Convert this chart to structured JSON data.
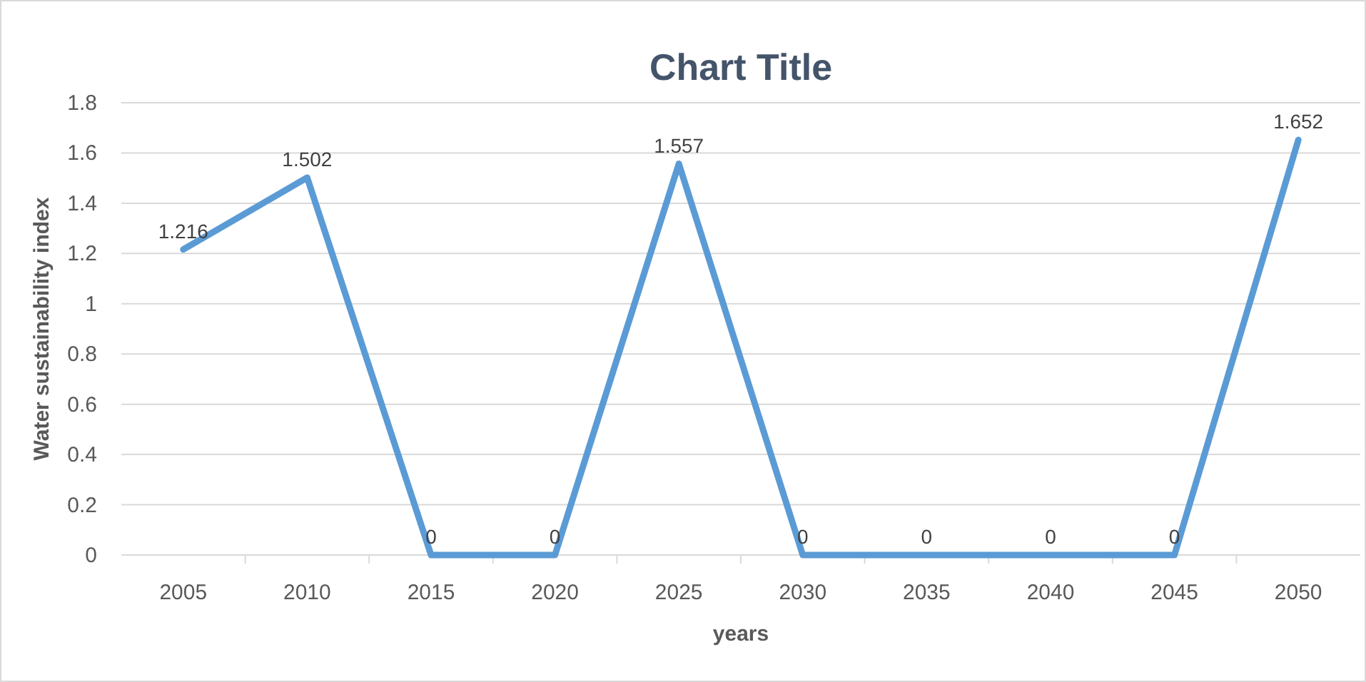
{
  "chart_data": {
    "type": "line",
    "title": "Chart Title",
    "xlabel": "years",
    "ylabel": "Water sustainability index",
    "categories": [
      "2005",
      "2010",
      "2015",
      "2020",
      "2025",
      "2030",
      "2035",
      "2040",
      "2045",
      "2050"
    ],
    "series": [
      {
        "color": "#5b9bd5",
        "values": [
          1.216,
          1.502,
          0,
          0,
          1.557,
          0,
          0,
          0,
          0,
          1.652
        ]
      }
    ],
    "ylim": [
      0,
      1.8
    ],
    "yticks": [
      0,
      0.2,
      0.4,
      0.6,
      0.8,
      1,
      1.2,
      1.4,
      1.6,
      1.8
    ],
    "grid": "y",
    "data_labels": true,
    "marker": "none",
    "line_style": "solid"
  }
}
